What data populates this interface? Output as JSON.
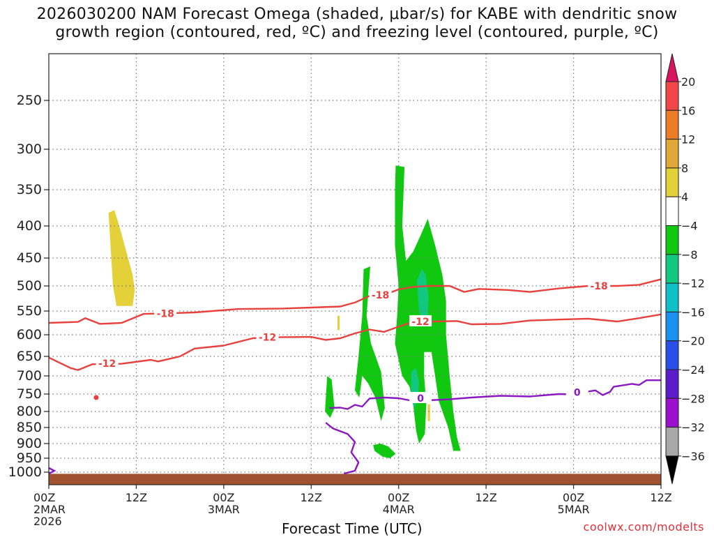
{
  "title": {
    "line1": "2026030200 NAM Forecast Omega (shaded, μbar/s) for KABE with dendritic snow",
    "line2": "growth region (contoured, red, ºC) and freezing level (contoured, purple, ºC)"
  },
  "credit": "coolwx.com/modelts",
  "chart_data": {
    "type": "time-height cross section",
    "xlabel": "Forecast Time (UTC)",
    "ylabel": "",
    "x_range_hours": [
      0,
      84
    ],
    "x_ticks": [
      {
        "hour": 0,
        "lines": [
          "00Z",
          "2MAR",
          "2026"
        ]
      },
      {
        "hour": 12,
        "lines": [
          "12Z"
        ]
      },
      {
        "hour": 24,
        "lines": [
          "00Z",
          "3MAR"
        ]
      },
      {
        "hour": 36,
        "lines": [
          "12Z"
        ]
      },
      {
        "hour": 48,
        "lines": [
          "00Z",
          "4MAR"
        ]
      },
      {
        "hour": 60,
        "lines": [
          "12Z"
        ]
      },
      {
        "hour": 72,
        "lines": [
          "00Z",
          "5MAR"
        ]
      },
      {
        "hour": 84,
        "lines": [
          "12Z"
        ]
      }
    ],
    "y_ticks_mb": [
      250,
      300,
      350,
      400,
      450,
      500,
      550,
      600,
      650,
      700,
      750,
      800,
      850,
      900,
      950,
      1000
    ],
    "colorbar": {
      "labels": [
        "20",
        "16",
        "12",
        "8",
        "4",
        "−4",
        "−8",
        "−12",
        "−16",
        "−20",
        "−24",
        "−28",
        "−32",
        "−36"
      ],
      "colors": [
        "#d8145e",
        "#f04848",
        "#ec7c28",
        "#e0a838",
        "#e4d038",
        "#ffffff",
        "#10c810",
        "#10c880",
        "#10c0c8",
        "#1c90ee",
        "#2850e8",
        "#5c1ccc",
        "#9a10cc",
        "#a8a8a8",
        "#000000"
      ]
    },
    "contour_labels": {
      "dgz_cold": "-18",
      "dgz_warm": "-12",
      "freezing": "0"
    },
    "contours": {
      "minus18": [
        [
          0,
          575
        ],
        [
          4,
          573
        ],
        [
          5,
          565
        ],
        [
          7,
          577
        ],
        [
          10,
          575
        ],
        [
          13,
          556
        ],
        [
          16,
          555
        ],
        [
          20,
          553
        ],
        [
          26,
          546
        ],
        [
          32,
          545
        ],
        [
          36,
          543
        ],
        [
          40,
          541
        ],
        [
          42,
          533
        ],
        [
          44,
          520
        ],
        [
          46,
          518
        ],
        [
          48,
          507
        ],
        [
          50,
          502
        ],
        [
          52,
          500
        ],
        [
          55,
          500
        ],
        [
          57,
          512
        ],
        [
          59,
          506
        ],
        [
          63,
          508
        ],
        [
          66,
          512
        ],
        [
          70,
          505
        ],
        [
          74,
          500
        ],
        [
          78,
          500
        ],
        [
          81,
          498
        ],
        [
          84,
          488
        ]
      ],
      "minus12": [
        [
          0,
          653
        ],
        [
          3,
          680
        ],
        [
          4,
          685
        ],
        [
          6,
          670
        ],
        [
          10,
          669
        ],
        [
          14,
          659
        ],
        [
          15,
          663
        ],
        [
          18,
          650
        ],
        [
          20,
          632
        ],
        [
          24,
          625
        ],
        [
          28,
          608
        ],
        [
          30,
          606
        ],
        [
          36,
          605
        ],
        [
          38,
          612
        ],
        [
          40,
          608
        ],
        [
          42,
          597
        ],
        [
          44,
          589
        ],
        [
          46,
          594
        ],
        [
          48,
          583
        ],
        [
          50,
          573
        ],
        [
          53,
          572
        ],
        [
          56,
          571
        ],
        [
          58,
          578
        ],
        [
          62,
          577
        ],
        [
          66,
          570
        ],
        [
          70,
          568
        ],
        [
          74,
          566
        ],
        [
          78,
          572
        ],
        [
          81,
          565
        ],
        [
          84,
          557
        ]
      ],
      "freezing": [
        [
          38.5,
          790
        ],
        [
          40,
          789
        ],
        [
          41,
          793
        ],
        [
          42,
          781
        ],
        [
          43,
          786
        ],
        [
          44,
          763
        ],
        [
          46,
          760
        ],
        [
          48,
          762
        ],
        [
          50,
          770
        ],
        [
          52,
          768
        ],
        [
          55,
          765
        ],
        [
          58,
          760
        ],
        [
          62,
          755
        ],
        [
          66,
          757
        ],
        [
          70,
          750
        ],
        [
          72,
          751
        ],
        [
          74,
          743
        ],
        [
          75,
          740
        ],
        [
          76,
          753
        ],
        [
          77,
          744
        ],
        [
          77.5,
          730
        ],
        [
          80,
          722
        ],
        [
          81,
          725
        ],
        [
          82,
          712
        ],
        [
          84,
          712
        ]
      ],
      "freezing_lower": [
        [
          38,
          835
        ],
        [
          39,
          853
        ],
        [
          41,
          870
        ],
        [
          42,
          895
        ],
        [
          41.5,
          930
        ],
        [
          42.5,
          965
        ],
        [
          42,
          995
        ],
        [
          40.5,
          1004
        ]
      ]
    },
    "omega_regions": [
      {
        "level": "8",
        "poly": [
          [
            8.2,
            382
          ],
          [
            9,
            378
          ],
          [
            9.8,
            405
          ],
          [
            11.5,
            480
          ],
          [
            11.8,
            508
          ],
          [
            11.5,
            540
          ],
          [
            9.3,
            540
          ],
          [
            8.8,
            500
          ]
        ]
      },
      {
        "level": "-4",
        "poly": [
          [
            47.6,
            320
          ],
          [
            48.8,
            322
          ],
          [
            48.5,
            400
          ],
          [
            49,
            455
          ],
          [
            50,
            440
          ],
          [
            51,
            415
          ],
          [
            52,
            390
          ],
          [
            53,
            430
          ],
          [
            54,
            480
          ],
          [
            54.5,
            530
          ],
          [
            54.5,
            600
          ],
          [
            55,
            700
          ],
          [
            55.5,
            800
          ],
          [
            56,
            880
          ],
          [
            56.5,
            925
          ],
          [
            55.5,
            925
          ],
          [
            54.8,
            850
          ],
          [
            53.5,
            770
          ],
          [
            53,
            700
          ],
          [
            52.5,
            640
          ],
          [
            51.5,
            640
          ],
          [
            51.5,
            700
          ],
          [
            51.8,
            780
          ],
          [
            51.6,
            870
          ],
          [
            50.8,
            900
          ],
          [
            50.4,
            860
          ],
          [
            50,
            780
          ],
          [
            49.5,
            730
          ],
          [
            48.5,
            700
          ],
          [
            48,
            660
          ],
          [
            47.5,
            620
          ],
          [
            47.8,
            560
          ],
          [
            48,
            500
          ],
          [
            47.5,
            430
          ],
          [
            47.5,
            350
          ]
        ]
      },
      {
        "level": "-4",
        "poly": [
          [
            43.2,
            470
          ],
          [
            44.1,
            465
          ],
          [
            43.6,
            560
          ],
          [
            44.2,
            620
          ],
          [
            45.6,
            690
          ],
          [
            46.1,
            790
          ],
          [
            45.6,
            830
          ],
          [
            44.8,
            760
          ],
          [
            43.8,
            720
          ],
          [
            43,
            700
          ],
          [
            42.6,
            760
          ],
          [
            42,
            740
          ],
          [
            42.5,
            650
          ],
          [
            43,
            560
          ]
        ]
      },
      {
        "level": "-4",
        "poly": [
          [
            38.2,
            700
          ],
          [
            38.8,
            710
          ],
          [
            39.2,
            790
          ],
          [
            38.6,
            820
          ],
          [
            37.9,
            800
          ]
        ]
      },
      {
        "level": "-4",
        "poly": [
          [
            44.5,
            905
          ],
          [
            45.5,
            900
          ],
          [
            46.6,
            910
          ],
          [
            47.6,
            935
          ],
          [
            46.8,
            950
          ],
          [
            45.8,
            945
          ],
          [
            44.7,
            925
          ]
        ]
      },
      {
        "level": "-8",
        "poly": [
          [
            50.5,
            490
          ],
          [
            51.2,
            470
          ],
          [
            51.7,
            480
          ],
          [
            52.1,
            520
          ],
          [
            52,
            560
          ],
          [
            51.3,
            570
          ],
          [
            50.8,
            550
          ]
        ]
      },
      {
        "level": "-8",
        "poly": [
          [
            49.7,
            690
          ],
          [
            50.4,
            680
          ],
          [
            50.8,
            720
          ],
          [
            50.6,
            770
          ],
          [
            50.1,
            790
          ],
          [
            49.7,
            760
          ]
        ]
      },
      {
        "level": "4",
        "poly": [
          [
            39.6,
            560
          ],
          [
            39.9,
            560
          ],
          [
            39.9,
            590
          ],
          [
            39.6,
            590
          ]
        ]
      },
      {
        "level": "4",
        "poly": [
          [
            52,
            780
          ],
          [
            52.3,
            780
          ],
          [
            52.3,
            830
          ],
          [
            52,
            830
          ]
        ]
      }
    ],
    "point_markers": [
      {
        "hour": 6.5,
        "mb": 760
      }
    ],
    "terrain_surface_mb": 1012
  }
}
